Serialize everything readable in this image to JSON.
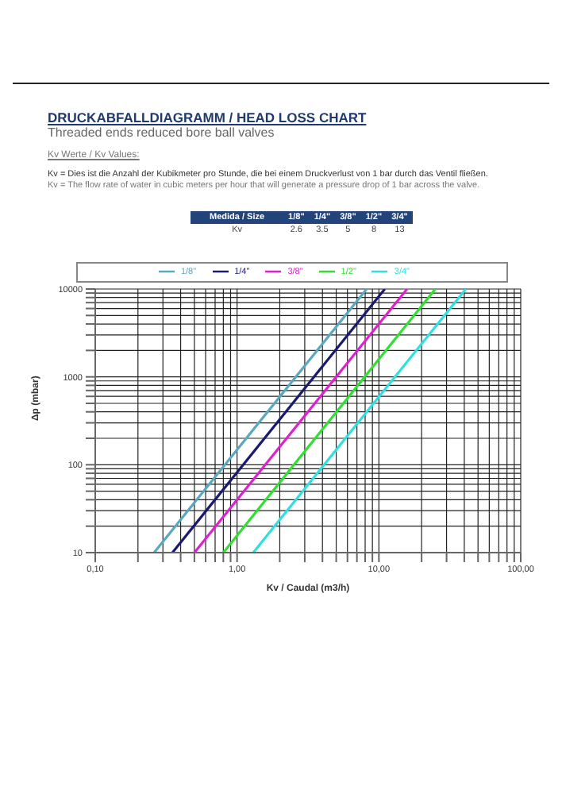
{
  "chart_data": {
    "type": "line",
    "title": "DRUCKABFALLDIAGRAMM / HEAD LOSS CHART",
    "subtitle": "Threaded ends reduced bore ball valves",
    "annotations": [
      "Kv Werte / Kv Values:",
      "Kv = Dies ist die Anzahl der Kubikmeter pro Stunde, die bei einem Druckverlust von 1 bar durch das Ventil fließen.",
      "Kv = The flow rate of water in cubic meters per hour that will generate a pressure drop of 1 bar across the valve.",
      "Medida / Size",
      "Kv",
      "2.6",
      "3.5",
      "5",
      "8",
      "13"
    ],
    "xlabel": "Kv / Caudal (m3/h)",
    "ylabel": "Δp (mbar)",
    "log": "xy",
    "grid": true,
    "legend": "top",
    "marker": "none",
    "line_style": "solid",
    "xlim": [
      0.1,
      100
    ],
    "ylim": [
      10,
      10000
    ],
    "xticks": [
      {
        "value": 0.1,
        "label": "0,10"
      },
      {
        "value": 0.2,
        "label": null
      },
      {
        "value": 0.3,
        "label": null
      },
      {
        "value": 0.4,
        "label": null
      },
      {
        "value": 0.5,
        "label": null
      },
      {
        "value": 0.6,
        "label": null
      },
      {
        "value": 0.7,
        "label": null
      },
      {
        "value": 0.8,
        "label": null
      },
      {
        "value": 0.9,
        "label": null
      },
      {
        "value": 1,
        "label": "1,00"
      },
      {
        "value": 2,
        "label": null
      },
      {
        "value": 3,
        "label": null
      },
      {
        "value": 4,
        "label": null
      },
      {
        "value": 5,
        "label": null
      },
      {
        "value": 6,
        "label": null
      },
      {
        "value": 7,
        "label": null
      },
      {
        "value": 8,
        "label": null
      },
      {
        "value": 9,
        "label": null
      },
      {
        "value": 10,
        "label": "10,00"
      },
      {
        "value": 20,
        "label": null
      },
      {
        "value": 30,
        "label": null
      },
      {
        "value": 40,
        "label": null
      },
      {
        "value": 50,
        "label": null
      },
      {
        "value": 60,
        "label": null
      },
      {
        "value": 70,
        "label": null
      },
      {
        "value": 80,
        "label": null
      },
      {
        "value": 90,
        "label": null
      },
      {
        "value": 100,
        "label": "100,00"
      }
    ],
    "yticks": [
      10,
      {
        "value": 20,
        "label": null
      },
      {
        "value": 30,
        "label": null
      },
      {
        "value": 40,
        "label": null
      },
      {
        "value": 50,
        "label": null
      },
      {
        "value": 60,
        "label": null
      },
      {
        "value": 70,
        "label": null
      },
      {
        "value": 80,
        "label": null
      },
      {
        "value": 90,
        "label": null
      },
      100,
      {
        "value": 200,
        "label": null
      },
      {
        "value": 300,
        "label": null
      },
      {
        "value": 400,
        "label": null
      },
      {
        "value": 500,
        "label": null
      },
      {
        "value": 600,
        "label": null
      },
      {
        "value": 700,
        "label": null
      },
      {
        "value": 800,
        "label": null
      },
      {
        "value": 900,
        "label": null
      },
      1000,
      {
        "value": 2000,
        "label": null
      },
      {
        "value": 3000,
        "label": null
      },
      {
        "value": 4000,
        "label": null
      },
      {
        "value": 5000,
        "label": null
      },
      {
        "value": 6000,
        "label": null
      },
      {
        "value": 7000,
        "label": null
      },
      {
        "value": 8000,
        "label": null
      },
      {
        "value": 9000,
        "label": null
      },
      10000
    ],
    "series": [
      {
        "name": "1/8\"",
        "color": "#5aa8c0",
        "x": [
          0.26,
          8.2
        ],
        "values": [
          10,
          10000
        ]
      },
      {
        "name": "1/4\"",
        "color": "#1a1a70",
        "x": [
          0.35,
          11
        ],
        "values": [
          10,
          10000
        ]
      },
      {
        "name": "3/8\"",
        "color": "#e020d0",
        "x": [
          0.5,
          15.8
        ],
        "values": [
          10,
          10000
        ]
      },
      {
        "name": "1/2\"",
        "color": "#30e030",
        "x": [
          0.8,
          25
        ],
        "values": [
          10,
          10000
        ]
      },
      {
        "name": "3/4\"",
        "color": "#30e0e0",
        "x": [
          1.3,
          41
        ],
        "values": [
          10,
          10000
        ]
      }
    ]
  }
}
